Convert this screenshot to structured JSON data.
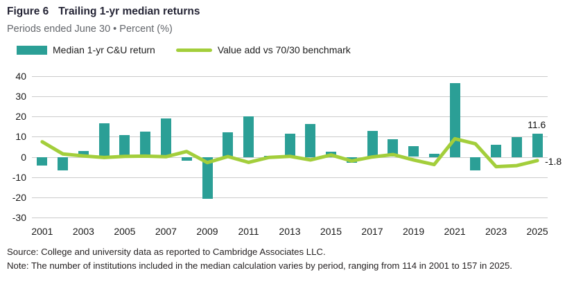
{
  "title": {
    "figure_label": "Figure 6",
    "text": "Trailing 1-yr median returns"
  },
  "subtitle": "Periods ended June 30 • Percent (%)",
  "legend": [
    {
      "label": "Median 1-yr C&U return",
      "color": "#2b9f96",
      "type": "bar-swatch"
    },
    {
      "label": "Value add vs 70/30 benchmark",
      "color": "#a3ce3b",
      "type": "line-swatch"
    }
  ],
  "chart_data": {
    "type": "bar",
    "x": [
      2001,
      2002,
      2003,
      2004,
      2005,
      2006,
      2007,
      2008,
      2009,
      2010,
      2011,
      2012,
      2013,
      2014,
      2015,
      2016,
      2017,
      2018,
      2019,
      2020,
      2021,
      2022,
      2023,
      2024,
      2025
    ],
    "series": [
      {
        "name": "Median 1-yr C&U return",
        "type": "bar",
        "color": "#2b9f96",
        "values": [
          -4.2,
          -6.7,
          2.8,
          16.6,
          10.8,
          12.6,
          19.0,
          -1.8,
          -20.8,
          12.1,
          20.0,
          0.5,
          11.7,
          16.4,
          2.6,
          -3.0,
          12.8,
          8.8,
          5.3,
          1.7,
          36.6,
          -6.8,
          5.9,
          9.9,
          11.6
        ]
      },
      {
        "name": "Value add vs 70/30 benchmark",
        "type": "line",
        "color": "#a3ce3b",
        "values": [
          7.5,
          1.5,
          0.5,
          -0.3,
          0.3,
          0.4,
          0.1,
          2.7,
          -2.8,
          0.2,
          -2.7,
          -0.2,
          0.3,
          -1.5,
          1.0,
          -2.0,
          0.0,
          1.2,
          -1.5,
          -3.8,
          9.0,
          6.5,
          -4.8,
          -4.3,
          -1.8
        ]
      }
    ],
    "ylim": [
      -30,
      40
    ],
    "yticks": [
      40,
      30,
      20,
      10,
      0,
      -10,
      -20,
      -30
    ],
    "xtick_labels": [
      "2001",
      "2003",
      "2005",
      "2007",
      "2009",
      "2011",
      "2013",
      "2015",
      "2017",
      "2019",
      "2021",
      "2023",
      "2025"
    ],
    "grid": "horizontal",
    "legend_position": "top-left",
    "annotations": [
      {
        "text": "11.6",
        "target": "bar-2025"
      },
      {
        "text": "-1.8",
        "target": "line-2025"
      }
    ]
  },
  "footer": {
    "source": "Source: College and university data as reported to Cambridge Associates LLC.",
    "note": "Note: The number of institutions included in the median calculation varies by period, ranging from 114 in 2001 to 157 in 2025."
  }
}
